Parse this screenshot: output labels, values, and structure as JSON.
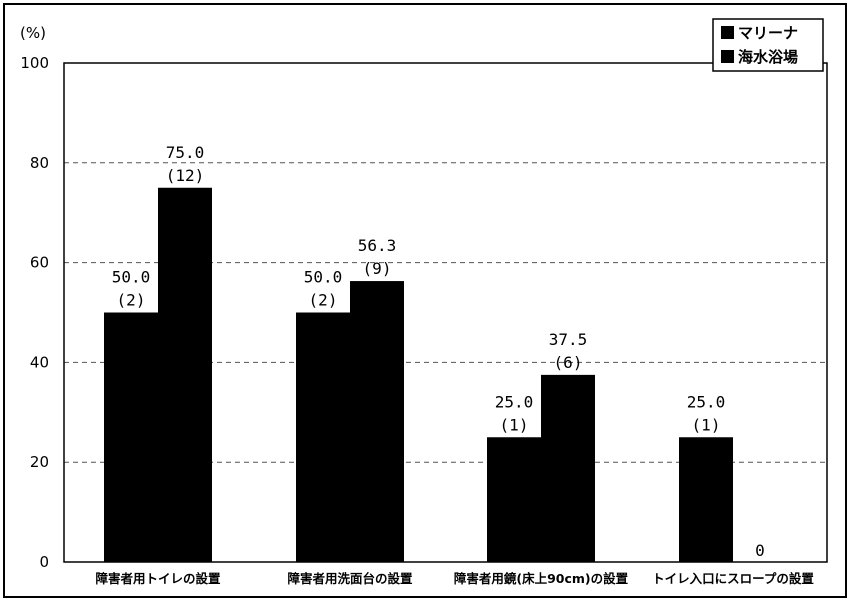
{
  "chart_data": {
    "type": "bar",
    "unit_label": "(%)",
    "categories": [
      "障害者用トイレの設置",
      "障害者用洗面台の設置",
      "障害者用鏡(床上90cm)の設置",
      "トイレ入口にスロープの設置"
    ],
    "series": [
      {
        "name": "マリーナ",
        "values": [
          50.0,
          50.0,
          25.0,
          25.0
        ],
        "value_labels": [
          "50.0",
          "50.0",
          "25.0",
          "25.0"
        ],
        "count_labels": [
          "(2)",
          "(2)",
          "(1)",
          "(1)"
        ]
      },
      {
        "name": "海水浴場",
        "values": [
          75.0,
          56.3,
          37.5,
          0
        ],
        "value_labels": [
          "75.0",
          "56.3",
          "37.5",
          "0"
        ],
        "count_labels": [
          "(12)",
          "(9)",
          "(6)",
          ""
        ]
      }
    ],
    "ylim": [
      0,
      100
    ],
    "yticks": [
      "0",
      "20",
      "40",
      "60",
      "80",
      "100"
    ],
    "grid": true,
    "legend_position": "top-right",
    "colors": {
      "bar": "#000000",
      "grid": "#555555",
      "background": "#ffffff"
    }
  }
}
